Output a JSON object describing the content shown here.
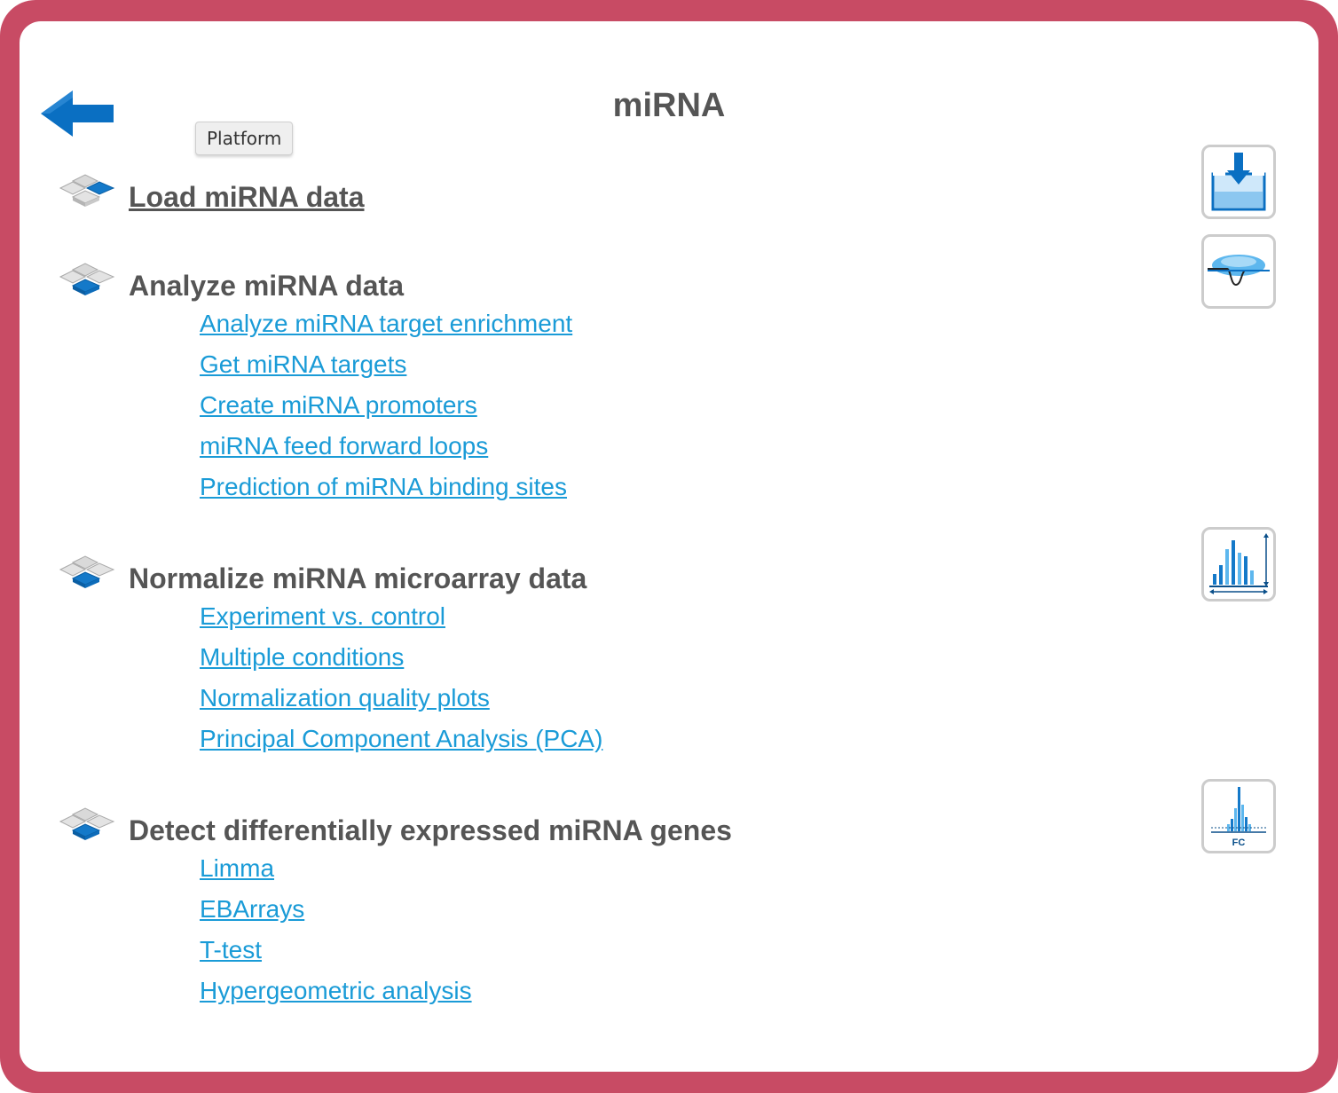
{
  "page": {
    "title": "miRNA",
    "back_icon": "back-arrow-icon",
    "tooltip": "Platform"
  },
  "colors": {
    "frame": "#c84b64",
    "link": "#1a9bd7",
    "heading": "#555555",
    "accent_blue": "#0a6fc2"
  },
  "sections": [
    {
      "heading": "Load miRNA data",
      "heading_is_link": true,
      "icon": "workflow-blocks-icon",
      "tool_icon": "load-data-icon",
      "links": []
    },
    {
      "heading": "Analyze miRNA data",
      "heading_is_link": false,
      "icon": "workflow-blocks-icon",
      "tool_icon": "binding-curve-icon",
      "links": [
        "Analyze miRNA target enrichment",
        "Get miRNA targets",
        "Create miRNA promoters",
        "miRNA feed forward loops",
        "Prediction of miRNA binding sites"
      ]
    },
    {
      "heading": "Normalize miRNA microarray data",
      "heading_is_link": false,
      "icon": "workflow-blocks-icon",
      "tool_icon": "normalization-histogram-icon",
      "links": [
        "Experiment vs. control",
        "Multiple conditions",
        "Normalization quality plots",
        "Principal Component Analysis (PCA)"
      ]
    },
    {
      "heading": "Detect differentially expressed miRNA genes",
      "heading_is_link": false,
      "icon": "workflow-blocks-icon",
      "tool_icon": "fold-change-icon",
      "tool_icon_text": "FC",
      "links": [
        "Limma",
        "EBArrays",
        "T-test",
        "Hypergeometric analysis"
      ]
    }
  ]
}
